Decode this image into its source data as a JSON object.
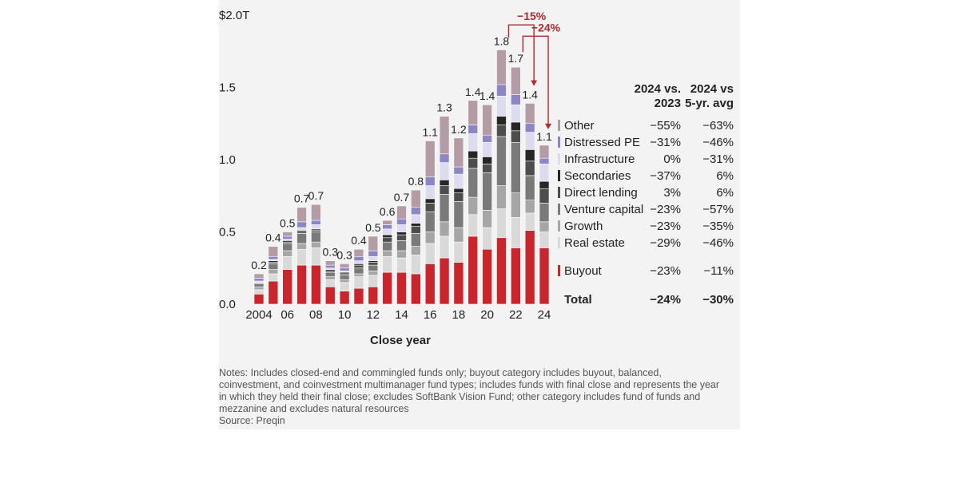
{
  "chart_data": {
    "type": "bar",
    "stacked": true,
    "categories": [
      "2004",
      "2005",
      "2006",
      "2007",
      "2008",
      "2009",
      "2010",
      "2011",
      "2012",
      "2013",
      "2014",
      "2015",
      "2016",
      "2017",
      "2018",
      "2019",
      "2020",
      "2021",
      "2022",
      "2023",
      "2024"
    ],
    "x_tick_labels": [
      {
        "index": 0,
        "label": "2004"
      },
      {
        "index": 2,
        "label": "06"
      },
      {
        "index": 4,
        "label": "08"
      },
      {
        "index": 6,
        "label": "10"
      },
      {
        "index": 8,
        "label": "12"
      },
      {
        "index": 10,
        "label": "14"
      },
      {
        "index": 12,
        "label": "16"
      },
      {
        "index": 14,
        "label": "18"
      },
      {
        "index": 16,
        "label": "20"
      },
      {
        "index": 18,
        "label": "22"
      },
      {
        "index": 20,
        "label": "24"
      }
    ],
    "y_ticks": [
      {
        "value": 0,
        "label": "0.0"
      },
      {
        "value": 0.5,
        "label": "0.5"
      },
      {
        "value": 1.0,
        "label": "1.0"
      },
      {
        "value": 1.5,
        "label": "1.5"
      },
      {
        "value": 2.0,
        "label": "$2.0T"
      }
    ],
    "ylim": [
      0,
      2.0
    ],
    "xlabel": "Close year",
    "ylabel": "",
    "title": "",
    "grid": false,
    "totals": [
      0.2,
      0.4,
      0.5,
      0.7,
      0.7,
      0.3,
      0.3,
      0.4,
      0.5,
      0.6,
      0.7,
      0.8,
      1.1,
      1.3,
      1.2,
      1.4,
      1.4,
      1.8,
      1.7,
      1.4,
      1.1
    ],
    "total_labels": [
      "0.2",
      "0.4",
      "0.5",
      "0.7",
      "0.7",
      "0.3",
      "0.3",
      "0.4",
      "0.5",
      "0.6",
      "0.7",
      "0.8",
      "1.1",
      "1.3",
      "1.2",
      "1.4",
      "1.4",
      "1.8",
      "1.7",
      "1.4",
      "1.1"
    ],
    "series": [
      {
        "name": "Buyout",
        "color": "#c8252c",
        "values": [
          0.07,
          0.16,
          0.24,
          0.27,
          0.27,
          0.12,
          0.09,
          0.11,
          0.12,
          0.22,
          0.22,
          0.21,
          0.28,
          0.32,
          0.29,
          0.47,
          0.38,
          0.46,
          0.39,
          0.51,
          0.39
        ]
      },
      {
        "name": "Real estate",
        "color": "#d9d9d9",
        "values": [
          0.03,
          0.05,
          0.09,
          0.11,
          0.12,
          0.05,
          0.06,
          0.08,
          0.08,
          0.11,
          0.1,
          0.13,
          0.14,
          0.15,
          0.14,
          0.15,
          0.15,
          0.2,
          0.21,
          0.12,
          0.11
        ]
      },
      {
        "name": "Growth",
        "color": "#a6a6a6",
        "values": [
          0.02,
          0.03,
          0.04,
          0.04,
          0.04,
          0.02,
          0.02,
          0.02,
          0.03,
          0.04,
          0.05,
          0.06,
          0.08,
          0.1,
          0.1,
          0.12,
          0.12,
          0.16,
          0.17,
          0.09,
          0.07
        ]
      },
      {
        "name": "Venture capital",
        "color": "#7a7a7a",
        "values": [
          0.02,
          0.04,
          0.05,
          0.07,
          0.07,
          0.03,
          0.03,
          0.04,
          0.04,
          0.06,
          0.07,
          0.09,
          0.14,
          0.19,
          0.18,
          0.2,
          0.26,
          0.34,
          0.35,
          0.17,
          0.13
        ]
      },
      {
        "name": "Direct lending",
        "color": "#4d4d4d",
        "values": [
          0.005,
          0.01,
          0.01,
          0.01,
          0.01,
          0.01,
          0.01,
          0.02,
          0.02,
          0.03,
          0.04,
          0.05,
          0.06,
          0.06,
          0.06,
          0.07,
          0.06,
          0.08,
          0.08,
          0.1,
          0.1
        ]
      },
      {
        "name": "Secondaries",
        "color": "#262626",
        "values": [
          0.005,
          0.01,
          0.01,
          0.01,
          0.01,
          0.01,
          0.01,
          0.01,
          0.01,
          0.02,
          0.02,
          0.02,
          0.03,
          0.04,
          0.03,
          0.05,
          0.05,
          0.06,
          0.06,
          0.08,
          0.05
        ]
      },
      {
        "name": "Infrastructure",
        "color": "#dcdbf0",
        "values": [
          0.01,
          0.01,
          0.01,
          0.02,
          0.03,
          0.01,
          0.01,
          0.02,
          0.03,
          0.04,
          0.05,
          0.06,
          0.09,
          0.12,
          0.1,
          0.12,
          0.1,
          0.14,
          0.12,
          0.12,
          0.12
        ]
      },
      {
        "name": "Distressed PE",
        "color": "#8d86c4",
        "values": [
          0.02,
          0.02,
          0.02,
          0.04,
          0.03,
          0.02,
          0.02,
          0.03,
          0.04,
          0.03,
          0.04,
          0.05,
          0.06,
          0.06,
          0.05,
          0.06,
          0.05,
          0.08,
          0.07,
          0.06,
          0.04
        ]
      },
      {
        "name": "Other",
        "color": "#b49ca6",
        "values": [
          0.03,
          0.07,
          0.03,
          0.1,
          0.11,
          0.03,
          0.03,
          0.05,
          0.1,
          0.03,
          0.09,
          0.12,
          0.25,
          0.26,
          0.2,
          0.17,
          0.21,
          0.24,
          0.19,
          0.14,
          0.09
        ]
      }
    ],
    "annotations": [
      {
        "label": "−15%",
        "from_index": 17,
        "to_index": 19
      },
      {
        "label": "−24%",
        "from_index": 18,
        "to_index": 20
      }
    ]
  },
  "table": {
    "headers": [
      {
        "line1": "2024 vs.",
        "line2": "2023"
      },
      {
        "line1": "2024 vs",
        "line2": "5-yr. avg"
      }
    ],
    "rows": [
      {
        "name": "Other",
        "color": "#b49ca6",
        "vs2023": "−55%",
        "vs5yr": "−63%"
      },
      {
        "name": "Distressed PE",
        "color": "#8d86c4",
        "vs2023": "−31%",
        "vs5yr": "−46%"
      },
      {
        "name": "Infrastructure",
        "color": "#dcdbf0",
        "vs2023": "0%",
        "vs5yr": "−31%"
      },
      {
        "name": "Secondaries",
        "color": "#262626",
        "vs2023": "−37%",
        "vs5yr": "6%"
      },
      {
        "name": "Direct lending",
        "color": "#4d4d4d",
        "vs2023": "3%",
        "vs5yr": "6%"
      },
      {
        "name": "Venture capital",
        "color": "#7a7a7a",
        "vs2023": "−23%",
        "vs5yr": "−57%"
      },
      {
        "name": "Growth",
        "color": "#a6a6a6",
        "vs2023": "−23%",
        "vs5yr": "−35%"
      },
      {
        "name": "Real estate",
        "color": "#d9d9d9",
        "vs2023": "−29%",
        "vs5yr": "−46%"
      },
      {
        "name": "Buyout",
        "color": "#c8252c",
        "vs2023": "−23%",
        "vs5yr": "−11%"
      }
    ],
    "total": {
      "name": "Total",
      "vs2023": "−24%",
      "vs5yr": "−30%"
    }
  },
  "notes": {
    "lines": [
      "Notes: Includes closed-end and commingled funds only; buyout category includes buyout, balanced,",
      "coinvestment, and coinvestment multimanager fund types; includes funds with final close and represents the year",
      "in which they held their final close; excludes SoftBank Vision Fund; other category includes fund of funds and",
      "mezzanine and excludes natural resources"
    ],
    "source": "Source: Preqin"
  }
}
